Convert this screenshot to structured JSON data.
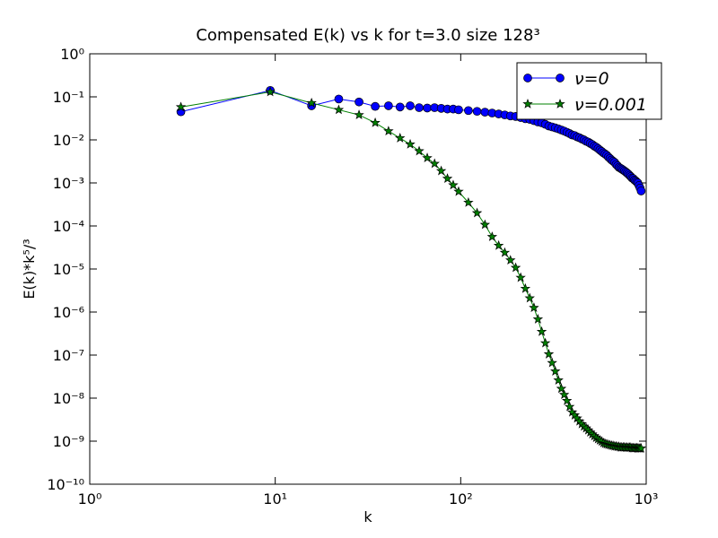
{
  "chart_data": {
    "type": "line",
    "title": "Compensated E(k) vs k for t=3.0 size 128³",
    "xlabel": "k",
    "ylabel": "E(k)*k⁵/³",
    "xscale": "log",
    "yscale": "log",
    "xlim": [
      1,
      1000
    ],
    "ylim": [
      1e-10,
      1
    ],
    "xticks": [
      {
        "value": 1,
        "label": "10⁰"
      },
      {
        "value": 10,
        "label": "10¹"
      },
      {
        "value": 100,
        "label": "10²"
      },
      {
        "value": 1000,
        "label": "10³"
      }
    ],
    "yticks": [
      {
        "value": 1e-10,
        "label": "10⁻¹⁰"
      },
      {
        "value": 1e-09,
        "label": "10⁻⁹"
      },
      {
        "value": 1e-08,
        "label": "10⁻⁸"
      },
      {
        "value": 1e-07,
        "label": "10⁻⁷"
      },
      {
        "value": 1e-06,
        "label": "10⁻⁶"
      },
      {
        "value": 1e-05,
        "label": "10⁻⁵"
      },
      {
        "value": 0.0001,
        "label": "10⁻⁴"
      },
      {
        "value": 0.001,
        "label": "10⁻³"
      },
      {
        "value": 0.01,
        "label": "10⁻²"
      },
      {
        "value": 0.1,
        "label": "10⁻¹"
      },
      {
        "value": 1,
        "label": "10⁰"
      }
    ],
    "legend": "upper right",
    "x": [
      3.1,
      9.4,
      15.7,
      22.0,
      28.3,
      34.6,
      40.8,
      47.1,
      53.4,
      59.7,
      66.0,
      72.3,
      78.5,
      84.8,
      91.1,
      97.4,
      110.0,
      122.5,
      135.1,
      147.7,
      160.2,
      172.8,
      185.4,
      197.9,
      210.5,
      223.1,
      235.6,
      248.2,
      260.8,
      273.3,
      285.9,
      298.5,
      311.0,
      323.6,
      336.2,
      348.7,
      361.3,
      373.9,
      386.4,
      399.0,
      411.6,
      424.1,
      436.7,
      449.3,
      461.8,
      474.4,
      487.0,
      499.5,
      512.1,
      524.7,
      537.2,
      549.8,
      562.4,
      574.9,
      587.5,
      600.0,
      612.6,
      625.2,
      637.7,
      650.3,
      662.9,
      675.4,
      688.0,
      700.6,
      713.1,
      725.7,
      738.3,
      750.8,
      763.4,
      776.0,
      788.5,
      801.1,
      813.7,
      826.2,
      838.8,
      851.4,
      863.9,
      876.5,
      889.1,
      901.6,
      914.2,
      926.8,
      939.3
    ],
    "series": [
      {
        "name": "ν=0",
        "color": "#0000ff",
        "marker": "circle",
        "values": [
          0.045,
          0.141,
          0.062,
          0.089,
          0.076,
          0.06,
          0.062,
          0.058,
          0.062,
          0.056,
          0.055,
          0.056,
          0.054,
          0.052,
          0.052,
          0.05,
          0.048,
          0.046,
          0.044,
          0.042,
          0.04,
          0.038,
          0.036,
          0.035,
          0.033,
          0.031,
          0.03,
          0.028,
          0.026,
          0.025,
          0.023,
          0.021,
          0.02,
          0.019,
          0.018,
          0.017,
          0.016,
          0.015,
          0.014,
          0.013,
          0.0126,
          0.0117,
          0.0112,
          0.0105,
          0.01,
          0.0093,
          0.0089,
          0.0083,
          0.0078,
          0.0072,
          0.0068,
          0.0063,
          0.0058,
          0.0054,
          0.005,
          0.0047,
          0.0044,
          0.004,
          0.0037,
          0.0034,
          0.0032,
          0.003,
          0.0027,
          0.0025,
          0.0023,
          0.0022,
          0.0021,
          0.002,
          0.0019,
          0.0018,
          0.0017,
          0.0016,
          0.0015,
          0.0014,
          0.0013,
          0.00126,
          0.00117,
          0.00112,
          0.00105,
          0.001,
          0.00087,
          0.00076,
          0.00065
        ]
      },
      {
        "name": "ν=0.001",
        "color": "#008000",
        "marker": "star",
        "values": [
          0.058,
          0.13,
          0.072,
          0.05,
          0.038,
          0.025,
          0.016,
          0.011,
          0.0079,
          0.0055,
          0.0038,
          0.0028,
          0.0019,
          0.00126,
          0.00089,
          0.00063,
          0.00035,
          0.0002,
          0.000107,
          5.6e-05,
          3.5e-05,
          2.4e-05,
          1.6e-05,
          1.07e-05,
          6.3e-06,
          3.5e-06,
          2.1e-06,
          1.26e-06,
          6.8e-07,
          3.5e-07,
          1.9e-07,
          1.05e-07,
          6.6e-08,
          4.2e-08,
          2.6e-08,
          1.66e-08,
          1.2e-08,
          8.7e-09,
          6.3e-09,
          4.7e-09,
          4e-09,
          3.4e-09,
          2.9e-09,
          2.5e-09,
          2.2e-09,
          2e-09,
          1.8e-09,
          1.6e-09,
          1.45e-09,
          1.32e-09,
          1.2e-09,
          1.12e-09,
          1.05e-09,
          9.8e-10,
          9.1e-10,
          8.7e-10,
          8.5e-10,
          8.3e-10,
          8.1e-10,
          7.9e-10,
          7.8e-10,
          7.6e-10,
          7.6e-10,
          7.4e-10,
          7.4e-10,
          7.2e-10,
          7.2e-10,
          7.2e-10,
          7.2e-10,
          7.1e-10,
          7.1e-10,
          7.1e-10,
          7.1e-10,
          7.1e-10,
          6.9e-10,
          6.9e-10,
          6.9e-10,
          6.9e-10,
          6.9e-10,
          6.8e-10,
          6.8e-10,
          6.8e-10,
          6.8e-10
        ]
      }
    ]
  }
}
